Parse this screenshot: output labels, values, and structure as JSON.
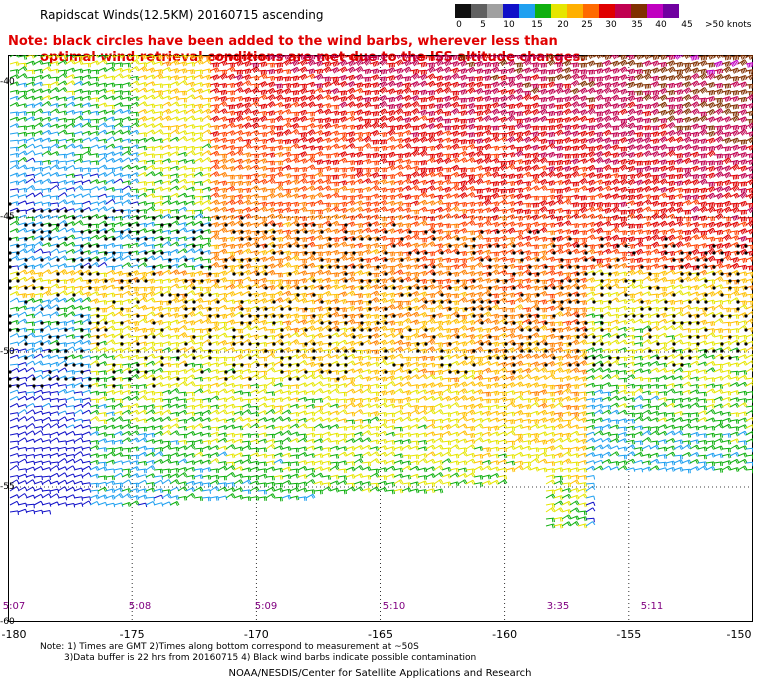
{
  "title": "Rapidscat Winds(12.5KM) 20160715 ascending",
  "note_line1": "Note: black circles have been added to the wind barbs, wherever less than",
  "note_line2": "optimal wind retrieval conditions are met due to the ISS altitude changes.",
  "legend": {
    "labels": [
      "0",
      "5",
      "10",
      "15",
      "20",
      "25",
      "30",
      "35",
      "40",
      "45",
      ">50 knots"
    ],
    "colors": [
      "#101010",
      "#606060",
      "#a0a0a0",
      "#1010c8",
      "#20a0f0",
      "#10b010",
      "#e6e600",
      "#ffb000",
      "#ff6a00",
      "#e00000",
      "#c00050",
      "#803000",
      "#c000c0",
      "#7000a0"
    ]
  },
  "axes": {
    "x_ticks": [
      "-180",
      "-175",
      "-170",
      "-165",
      "-160",
      "-155",
      "-150"
    ],
    "y_ticks": [
      "-40",
      "-45",
      "-50",
      "-55",
      "-60"
    ]
  },
  "times": [
    "5:07",
    "5:08",
    "5:09",
    "5:10",
    "3:35",
    "5:11"
  ],
  "notes": {
    "line1": "Note: 1) Times are GMT 2)Times along bottom correspond to measurement at ~50S",
    "line2": "3)Data buffer is 22 hrs from 20160715 4) Black wind barbs indicate possible contamination"
  },
  "credit": "NOAA/NESDIS/Center for Satellite Applications and Research",
  "map_data": {
    "lon_range": [
      -180,
      -150
    ],
    "lat_range": [
      -60,
      -39
    ],
    "grid": true,
    "swath_south_edge_lat": -55.5,
    "flagged_region": "black circles on barbs in band around -45 to -51"
  }
}
